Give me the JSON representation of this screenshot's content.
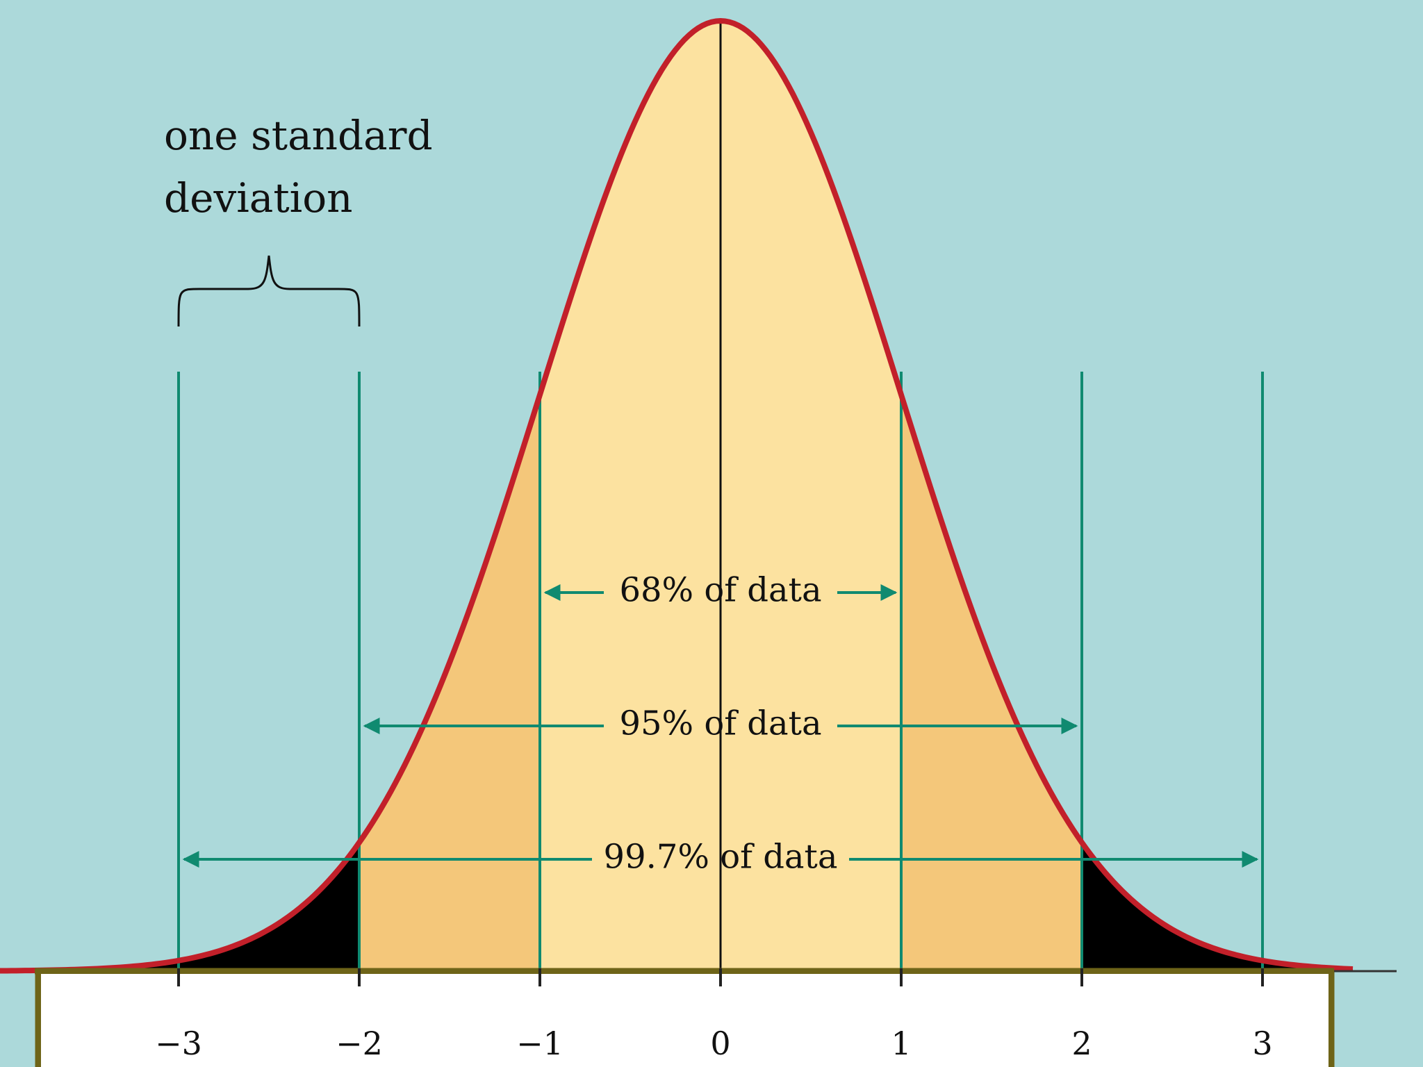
{
  "chart_data": {
    "type": "area",
    "title": "",
    "xlabel": "",
    "ylabel": "",
    "distribution": "normal",
    "mean": 0,
    "standard_deviation": 1,
    "xlim": [
      -4,
      3.5
    ],
    "x_ticks": [
      -3,
      -2,
      -1,
      0,
      1,
      2,
      3
    ],
    "x_tick_labels": [
      "−3",
      "−2",
      "−1",
      "0",
      "1",
      "2",
      "3"
    ],
    "annotation": {
      "lines": [
        "one standard",
        "deviation"
      ],
      "brace_from": -3,
      "brace_to": -2
    },
    "regions": [
      {
        "from": -1,
        "to": 1,
        "label": "68% of data",
        "percent": 68
      },
      {
        "from": -2,
        "to": 2,
        "label": "95% of data",
        "percent": 95
      },
      {
        "from": -3,
        "to": 3,
        "label": "99.7% of data",
        "percent": 99.7
      }
    ],
    "grid": false,
    "legend": "none"
  },
  "colors": {
    "background": "#acd9da",
    "curve": "#c2202a",
    "center_band": "#fce2a0",
    "mid_band": "#f4c77a",
    "tail": "#000000",
    "guide_lines": "#108a70",
    "axis": "#6e6418"
  }
}
